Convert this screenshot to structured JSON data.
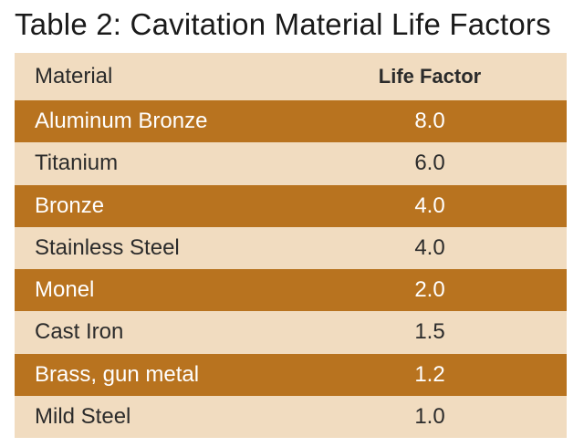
{
  "title": "Table 2: Cavitation Material Life Factors",
  "headers": {
    "material": "Material",
    "life_factor": "Life Factor"
  },
  "rows": [
    {
      "material": "Aluminum Bronze",
      "life_factor": "8.0"
    },
    {
      "material": "Titanium",
      "life_factor": "6.0"
    },
    {
      "material": "Bronze",
      "life_factor": "4.0"
    },
    {
      "material": "Stainless Steel",
      "life_factor": "4.0"
    },
    {
      "material": "Monel",
      "life_factor": "2.0"
    },
    {
      "material": "Cast Iron",
      "life_factor": "1.5"
    },
    {
      "material": "Brass, gun metal",
      "life_factor": "1.2"
    },
    {
      "material": "Mild Steel",
      "life_factor": "1.0"
    }
  ],
  "colors": {
    "dark_row": "#b8731f",
    "light_row": "#f1dcc0"
  }
}
